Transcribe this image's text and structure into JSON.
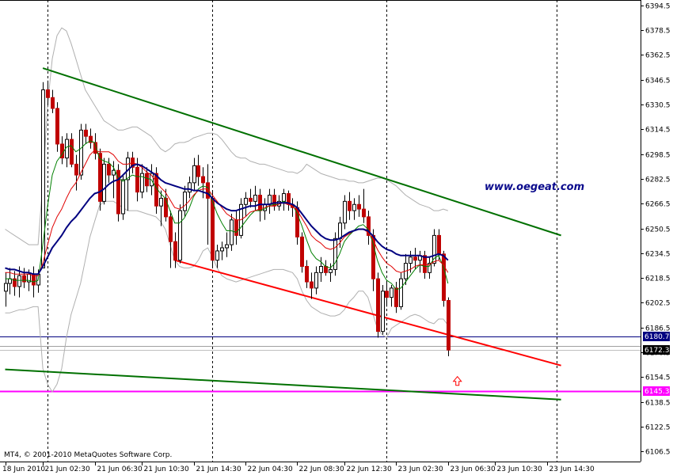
{
  "chart_data": {
    "type": "candlestick",
    "watermark": "www.oegeat.com",
    "copyright": "MT4, © 2001-2010 MetaQuotes Software Corp.",
    "ylim": [
      6100,
      6398
    ],
    "y_ticks": [
      6394.5,
      6378.5,
      6362.5,
      6346.5,
      6330.5,
      6314.5,
      6298.5,
      6282.5,
      6266.5,
      6250.5,
      6234.5,
      6218.5,
      6202.5,
      6186.5,
      6170.5,
      6154.5,
      6138.5,
      6122.5,
      6106.5
    ],
    "x_ticks": [
      "18 Jun 2010",
      "21 Jun 02:30",
      "21 Jun 06:30",
      "21 Jun 10:30",
      "21 Jun 14:30",
      "22 Jun 04:30",
      "22 Jun 08:30",
      "22 Jun 12:30",
      "23 Jun 02:30",
      "23 Jun 06:30",
      "23 Jun 10:30",
      "23 Jun 14:30"
    ],
    "x_tick_index": [
      0,
      8,
      19,
      29,
      40,
      51,
      62,
      72,
      83,
      94,
      104,
      115
    ],
    "price_badges": [
      {
        "label": "6180.7",
        "value": 6180.7,
        "color": "#000080"
      },
      {
        "label": "6172.3",
        "value": 6172.3,
        "color": "#000000"
      },
      {
        "label": "6145.3",
        "value": 6145.3,
        "color": "#ff00ff"
      }
    ],
    "horizontal_lines": [
      {
        "value": 6180.7,
        "color": "#000080"
      },
      {
        "value": 6174.5,
        "color": "#a0a0a0"
      },
      {
        "value": 6172.3,
        "color": "#c0c0c0"
      },
      {
        "value": 6145.3,
        "color": "#ff00ff"
      }
    ],
    "session_separators": [
      9,
      44,
      81,
      117
    ],
    "candles": [
      [
        6210,
        6222,
        6200,
        6215
      ],
      [
        6215,
        6225,
        6208,
        6218
      ],
      [
        6218,
        6223,
        6207,
        6213
      ],
      [
        6213,
        6226,
        6206,
        6220
      ],
      [
        6220,
        6225,
        6212,
        6216
      ],
      [
        6216,
        6224,
        6210,
        6221
      ],
      [
        6221,
        6226,
        6206,
        6214
      ],
      [
        6214,
        6224,
        6209,
        6221
      ],
      [
        6225,
        6345,
        6225,
        6340
      ],
      [
        6340,
        6346,
        6330,
        6335
      ],
      [
        6335,
        6340,
        6325,
        6328
      ],
      [
        6328,
        6332,
        6300,
        6305
      ],
      [
        6305,
        6310,
        6292,
        6296
      ],
      [
        6296,
        6312,
        6290,
        6308
      ],
      [
        6308,
        6312,
        6290,
        6292
      ],
      [
        6292,
        6298,
        6275,
        6285
      ],
      [
        6285,
        6318,
        6282,
        6314
      ],
      [
        6314,
        6318,
        6305,
        6310
      ],
      [
        6310,
        6315,
        6302,
        6306
      ],
      [
        6306,
        6312,
        6295,
        6299
      ],
      [
        6299,
        6302,
        6262,
        6268
      ],
      [
        6268,
        6296,
        6266,
        6292
      ],
      [
        6292,
        6296,
        6280,
        6285
      ],
      [
        6285,
        6294,
        6270,
        6288
      ],
      [
        6288,
        6292,
        6255,
        6260
      ],
      [
        6260,
        6285,
        6256,
        6282
      ],
      [
        6282,
        6300,
        6262,
        6296
      ],
      [
        6296,
        6300,
        6286,
        6290
      ],
      [
        6290,
        6296,
        6268,
        6274
      ],
      [
        6274,
        6292,
        6270,
        6286
      ],
      [
        6286,
        6290,
        6274,
        6278
      ],
      [
        6278,
        6292,
        6272,
        6286
      ],
      [
        6286,
        6290,
        6260,
        6265
      ],
      [
        6265,
        6275,
        6252,
        6270
      ],
      [
        6270,
        6276,
        6255,
        6258
      ],
      [
        6258,
        6262,
        6225,
        6242
      ],
      [
        6242,
        6248,
        6225,
        6230
      ],
      [
        6230,
        6266,
        6228,
        6262
      ],
      [
        6262,
        6278,
        6258,
        6274
      ],
      [
        6274,
        6284,
        6270,
        6280
      ],
      [
        6280,
        6296,
        6275,
        6291
      ],
      [
        6291,
        6298,
        6278,
        6284
      ],
      [
        6284,
        6290,
        6270,
        6280
      ],
      [
        6280,
        6292,
        6240,
        6270
      ],
      [
        6270,
        6275,
        6225,
        6230
      ],
      [
        6230,
        6240,
        6225,
        6236
      ],
      [
        6236,
        6242,
        6230,
        6238
      ],
      [
        6238,
        6248,
        6232,
        6240
      ],
      [
        6240,
        6260,
        6236,
        6256
      ],
      [
        6256,
        6262,
        6240,
        6246
      ],
      [
        6246,
        6270,
        6244,
        6266
      ],
      [
        6266,
        6274,
        6258,
        6270
      ],
      [
        6270,
        6276,
        6264,
        6268
      ],
      [
        6268,
        6278,
        6262,
        6272
      ],
      [
        6272,
        6276,
        6255,
        6262
      ],
      [
        6262,
        6270,
        6256,
        6266
      ],
      [
        6266,
        6276,
        6260,
        6272
      ],
      [
        6272,
        6276,
        6262,
        6265
      ],
      [
        6265,
        6272,
        6262,
        6268
      ],
      [
        6268,
        6276,
        6262,
        6273
      ],
      [
        6273,
        6275,
        6262,
        6266
      ],
      [
        6266,
        6270,
        6258,
        6264
      ],
      [
        6264,
        6268,
        6240,
        6245
      ],
      [
        6245,
        6248,
        6222,
        6226
      ],
      [
        6226,
        6230,
        6212,
        6216
      ],
      [
        6216,
        6222,
        6205,
        6212
      ],
      [
        6212,
        6226,
        6208,
        6222
      ],
      [
        6222,
        6232,
        6216,
        6226
      ],
      [
        6226,
        6230,
        6220,
        6222
      ],
      [
        6222,
        6228,
        6216,
        6224
      ],
      [
        6224,
        6248,
        6220,
        6244
      ],
      [
        6244,
        6258,
        6238,
        6254
      ],
      [
        6254,
        6272,
        6250,
        6268
      ],
      [
        6268,
        6274,
        6256,
        6262
      ],
      [
        6262,
        6270,
        6256,
        6266
      ],
      [
        6266,
        6272,
        6258,
        6263
      ],
      [
        6263,
        6276,
        6254,
        6258
      ],
      [
        6258,
        6262,
        6240,
        6246
      ],
      [
        6246,
        6250,
        6210,
        6218
      ],
      [
        6218,
        6222,
        6180,
        6184
      ],
      [
        6184,
        6214,
        6182,
        6210
      ],
      [
        6210,
        6216,
        6200,
        6206
      ],
      [
        6206,
        6214,
        6200,
        6212
      ],
      [
        6212,
        6216,
        6196,
        6200
      ],
      [
        6200,
        6222,
        6198,
        6218
      ],
      [
        6218,
        6234,
        6214,
        6228
      ],
      [
        6228,
        6236,
        6222,
        6232
      ],
      [
        6232,
        6238,
        6224,
        6230
      ],
      [
        6230,
        6236,
        6222,
        6233
      ],
      [
        6233,
        6236,
        6218,
        6222
      ],
      [
        6222,
        6232,
        6218,
        6228
      ],
      [
        6228,
        6250,
        6226,
        6246
      ],
      [
        6246,
        6250,
        6230,
        6234
      ],
      [
        6234,
        6236,
        6200,
        6204
      ],
      [
        6204,
        6206,
        6168,
        6172
      ]
    ],
    "ma_blue": [
      6225,
      6224,
      6224,
      6223,
      6222,
      6222,
      6221,
      6221,
      6226,
      6232,
      6238,
      6242,
      6246,
      6251,
      6255,
      6258,
      6262,
      6266,
      6270,
      6273,
      6274,
      6276,
      6279,
      6281,
      6282,
      6285,
      6288,
      6291,
      6292,
      6291,
      6289,
      6287,
      6285,
      6282,
      6280,
      6279,
      6278,
      6277,
      6276,
      6276,
      6275,
      6275,
      6274,
      6273,
      6270,
      6267,
      6265,
      6263,
      6262,
      6262,
      6263,
      6264,
      6265,
      6265,
      6266,
      6266,
      6266,
      6267,
      6267,
      6267,
      6267,
      6266,
      6264,
      6260,
      6256,
      6252,
      6249,
      6246,
      6244,
      6243,
      6243,
      6244,
      6246,
      6248,
      6249,
      6250,
      6250,
      6249,
      6246,
      6242,
      6239,
      6237,
      6236,
      6234,
      6233,
      6233,
      6233,
      6233,
      6233,
      6232,
      6232,
      6233,
      6234,
      6233,
      6230
    ],
    "ma_red": [
      6222,
      6222,
      6221,
      6221,
      6221,
      6221,
      6220,
      6220,
      6228,
      6240,
      6251,
      6258,
      6263,
      6270,
      6276,
      6280,
      6286,
      6292,
      6298,
      6301,
      6300,
      6300,
      6300,
      6298,
      6294,
      6292,
      6292,
      6293,
      6292,
      6290,
      6287,
      6285,
      6281,
      6277,
      6274,
      6269,
      6264,
      6263,
      6265,
      6268,
      6272,
      6275,
      6276,
      6276,
      6272,
      6268,
      6264,
      6260,
      6258,
      6256,
      6256,
      6258,
      6261,
      6262,
      6263,
      6264,
      6265,
      6265,
      6266,
      6267,
      6266,
      6265,
      6262,
      6257,
      6252,
      6246,
      6243,
      6241,
      6238,
      6237,
      6238,
      6241,
      6245,
      6247,
      6249,
      6250,
      6250,
      6248,
      6244,
      6237,
      6232,
      6228,
      6226,
      6223,
      6222,
      6223,
      6224,
      6226,
      6227,
      6227,
      6227,
      6229,
      6230,
      6227,
      6222
    ],
    "ma_green": [
      6218,
      6218,
      6217,
      6217,
      6217,
      6217,
      6216,
      6217,
      6240,
      6265,
      6285,
      6294,
      6298,
      6303,
      6304,
      6300,
      6302,
      6305,
      6307,
      6306,
      6296,
      6294,
      6293,
      6290,
      6283,
      6281,
      6283,
      6285,
      6284,
      6284,
      6283,
      6282,
      6277,
      6273,
      6270,
      6262,
      6254,
      6254,
      6257,
      6263,
      6271,
      6276,
      6278,
      6277,
      6268,
      6260,
      6254,
      6249,
      6249,
      6248,
      6251,
      6255,
      6259,
      6262,
      6262,
      6263,
      6265,
      6266,
      6266,
      6268,
      6267,
      6266,
      6260,
      6252,
      6243,
      6235,
      6231,
      6229,
      6226,
      6225,
      6228,
      6234,
      6242,
      6246,
      6249,
      6252,
      6253,
      6250,
      6242,
      6230,
      6222,
      6217,
      6215,
      6211,
      6212,
      6216,
      6220,
      6224,
      6227,
      6226,
      6226,
      6231,
      6233,
      6226,
      6215
    ],
    "bb_upper": [
      6250,
      6248,
      6246,
      6244,
      6242,
      6240,
      6240,
      6240,
      6280,
      6330,
      6360,
      6375,
      6380,
      6378,
      6370,
      6360,
      6350,
      6340,
      6335,
      6330,
      6325,
      6320,
      6318,
      6316,
      6314,
      6314,
      6315,
      6316,
      6316,
      6314,
      6312,
      6310,
      6306,
      6302,
      6300,
      6302,
      6305,
      6306,
      6306,
      6307,
      6309,
      6310,
      6311,
      6312,
      6312,
      6311,
      6308,
      6304,
      6300,
      6297,
      6296,
      6296,
      6294,
      6293,
      6292,
      6292,
      6291,
      6290,
      6289,
      6288,
      6287,
      6287,
      6286,
      6288,
      6292,
      6290,
      6288,
      6286,
      6285,
      6284,
      6283,
      6282,
      6282,
      6281,
      6281,
      6280,
      6280,
      6281,
      6282,
      6283,
      6283,
      6282,
      6280,
      6278,
      6275,
      6272,
      6270,
      6268,
      6266,
      6265,
      6264,
      6262,
      6262,
      6263,
      6262
    ],
    "bb_lower": [
      6196,
      6196,
      6197,
      6198,
      6198,
      6199,
      6200,
      6200,
      6160,
      6150,
      6145,
      6150,
      6160,
      6180,
      6195,
      6205,
      6215,
      6230,
      6245,
      6255,
      6265,
      6268,
      6268,
      6268,
      6266,
      6264,
      6262,
      6262,
      6262,
      6261,
      6260,
      6259,
      6258,
      6255,
      6250,
      6240,
      6230,
      6226,
      6225,
      6225,
      6226,
      6230,
      6236,
      6238,
      6232,
      6225,
      6220,
      6218,
      6217,
      6216,
      6217,
      6218,
      6219,
      6220,
      6221,
      6222,
      6223,
      6224,
      6224,
      6224,
      6223,
      6222,
      6218,
      6210,
      6204,
      6200,
      6198,
      6196,
      6195,
      6194,
      6194,
      6195,
      6198,
      6203,
      6206,
      6210,
      6210,
      6206,
      6196,
      6186,
      6182,
      6180,
      6186,
      6188,
      6190,
      6192,
      6194,
      6195,
      6194,
      6192,
      6190,
      6189,
      6192,
      6192,
      6188
    ],
    "trendlines": [
      {
        "color": "#007000",
        "from": [
          8,
          6354
        ],
        "to": [
          118,
          6246
        ]
      },
      {
        "color": "#ff0000",
        "from": [
          36,
          6230
        ],
        "to": [
          118,
          6162
        ]
      },
      {
        "color": "#007000",
        "from": [
          0,
          6159.5
        ],
        "to": [
          118,
          6140
        ]
      }
    ],
    "arrow": {
      "index": 96,
      "value": 6162,
      "color": "#ff0000"
    }
  }
}
